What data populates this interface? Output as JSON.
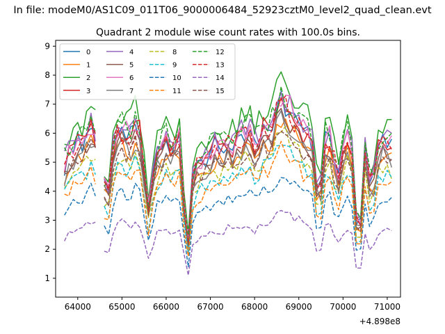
{
  "figure": {
    "suptitle": "In file: modeM0/AS1C09_011T06_9000006484_52923cztM0_level2_quad_clean.evt",
    "title": "Quadrant 2 module wise count rates with 100.0s bins.",
    "offset_label": "+4.898e8"
  },
  "chart_data": {
    "type": "line",
    "title": "Quadrant 2 module wise count rates with 100.0s bins.",
    "xlabel": "",
    "ylabel": "",
    "x_offset": 489800000,
    "xlim": [
      63500,
      71300
    ],
    "ylim": [
      0.35,
      9.2
    ],
    "xticks": [
      64000,
      65000,
      66000,
      67000,
      68000,
      69000,
      70000,
      71000
    ],
    "yticks": [
      1,
      2,
      3,
      4,
      5,
      6,
      7,
      8,
      9
    ],
    "grid": false,
    "legend": {
      "placement": "top-left",
      "columns": 4
    },
    "x_start": 63700,
    "x_end": 71130,
    "gap_intervals": [
      [
        64470,
        64560
      ]
    ],
    "drops": [
      {
        "center": 64650,
        "level": 0.55
      },
      {
        "center": 65600,
        "level": 0.6
      },
      {
        "center": 66480,
        "level": 0.32
      },
      {
        "center": 69450,
        "level": 0.62
      },
      {
        "center": 69880,
        "level": 0.72
      },
      {
        "center": 70350,
        "level": 0.3
      },
      {
        "center": 70650,
        "level": 0.65
      }
    ],
    "profile_points": [
      [
        63700,
        1.0
      ],
      [
        64100,
        1.14
      ],
      [
        64300,
        1.22
      ],
      [
        64500,
        1.18
      ],
      [
        64800,
        1.14
      ],
      [
        65000,
        1.22
      ],
      [
        65400,
        1.18
      ],
      [
        65800,
        1.07
      ],
      [
        66000,
        1.12
      ],
      [
        66300,
        1.18
      ],
      [
        66700,
        1.02
      ],
      [
        67000,
        1.1
      ],
      [
        67500,
        1.12
      ],
      [
        68000,
        1.16
      ],
      [
        68400,
        1.2
      ],
      [
        68650,
        1.42
      ],
      [
        68900,
        1.24
      ],
      [
        69200,
        1.18
      ],
      [
        69500,
        1.15
      ],
      [
        69800,
        1.2
      ],
      [
        70100,
        1.18
      ],
      [
        70700,
        1.15
      ],
      [
        71130,
        1.05
      ]
    ],
    "series": [
      {
        "name": "0",
        "color": "#1f77b4",
        "dash": "solid",
        "base": 5.0
      },
      {
        "name": "1",
        "color": "#ff7f0e",
        "dash": "solid",
        "base": 4.6
      },
      {
        "name": "2",
        "color": "#2ca02c",
        "dash": "solid",
        "base": 5.55
      },
      {
        "name": "3",
        "color": "#d62728",
        "dash": "solid",
        "base": 5.05
      },
      {
        "name": "4",
        "color": "#9467bd",
        "dash": "solid",
        "base": 5.2
      },
      {
        "name": "5",
        "color": "#8c564b",
        "dash": "solid",
        "base": 4.75
      },
      {
        "name": "6",
        "color": "#e377c2",
        "dash": "solid",
        "base": 5.1
      },
      {
        "name": "7",
        "color": "#7f7f7f",
        "dash": "solid",
        "base": 4.6
      },
      {
        "name": "8",
        "color": "#bcbd22",
        "dash": "dashed",
        "base": 4.3
      },
      {
        "name": "9",
        "color": "#17becf",
        "dash": "dashed",
        "base": 4.0
      },
      {
        "name": "10",
        "color": "#1f77b4",
        "dash": "dashed",
        "base": 3.3
      },
      {
        "name": "11",
        "color": "#ff7f0e",
        "dash": "dashed",
        "base": 3.8
      },
      {
        "name": "12",
        "color": "#2ca02c",
        "dash": "dashed",
        "base": 5.3
      },
      {
        "name": "13",
        "color": "#d62728",
        "dash": "dashed",
        "base": 5.0
      },
      {
        "name": "14",
        "color": "#9467bd",
        "dash": "dashed",
        "base": 2.4
      },
      {
        "name": "15",
        "color": "#8c564b",
        "dash": "dashed",
        "base": 4.5
      }
    ]
  }
}
